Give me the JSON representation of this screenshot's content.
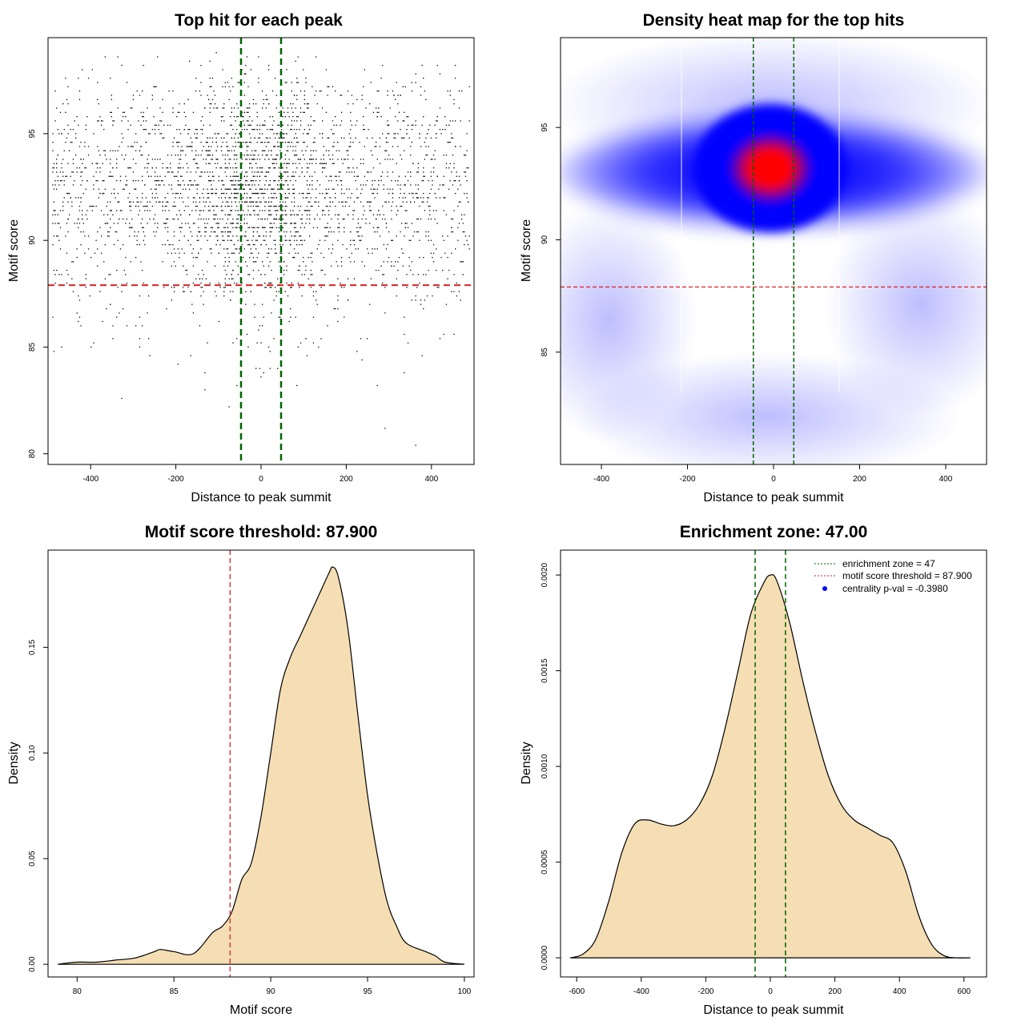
{
  "colors": {
    "threshold": "#dd2222",
    "zone": "#006400",
    "fill": "#f5deb3",
    "points": "#000000",
    "heat_low": "#ffffff",
    "heat_mid": "#0000ff",
    "heat_high": "#ff0000",
    "legend_dot": "#0000ff"
  },
  "chart_data": [
    {
      "type": "scatter",
      "title": "Top hit for each peak",
      "xlabel": "Distance to peak summit",
      "ylabel": "Motif score",
      "xlim": [
        -500,
        500
      ],
      "ylim": [
        79.5,
        99.5
      ],
      "xticks": [
        -400,
        -200,
        0,
        200,
        400
      ],
      "yticks": [
        80,
        85,
        90,
        95
      ],
      "threshold": 87.9,
      "zone": [
        -47,
        47
      ],
      "point_cloud": {
        "count": 3200,
        "x_range": [
          -490,
          490
        ],
        "x_peak": 0,
        "y_center": 92.8,
        "y_sd": 2.4,
        "y_max": 98.8
      }
    },
    {
      "type": "heatmap",
      "title": "Density heat map for the top hits",
      "xlabel": "Distance to peak summit",
      "ylabel": "Motif score",
      "xlim": [
        -495,
        495
      ],
      "ylim": [
        80,
        99
      ],
      "xticks": [
        -400,
        -200,
        0,
        200,
        400
      ],
      "yticks": [
        85,
        90,
        95
      ],
      "threshold": 87.9,
      "zone": [
        -47,
        47
      ],
      "hotspot": {
        "x": 0,
        "y": 93.5
      }
    },
    {
      "type": "area",
      "title": "Motif score threshold: 87.900",
      "xlabel": "Motif score",
      "ylabel": "Density",
      "xlim": [
        78.5,
        100.5
      ],
      "ylim": [
        -0.006,
        0.196
      ],
      "xticks": [
        80,
        85,
        90,
        95,
        100
      ],
      "yticks": [
        0.0,
        0.05,
        0.1,
        0.15
      ],
      "ytick_labels": [
        "0.00",
        "0.05",
        "0.10",
        "0.15"
      ],
      "threshold": 87.9,
      "x": [
        79,
        80,
        81,
        82,
        83,
        84,
        84.3,
        85,
        86,
        87,
        87.5,
        88,
        88.5,
        89,
        89.5,
        90,
        90.5,
        91,
        91.5,
        92,
        92.5,
        93,
        93.2,
        93.5,
        94,
        94.5,
        95,
        95.5,
        96,
        96.5,
        97,
        98,
        98.5,
        99,
        100
      ],
      "y": [
        0,
        0.001,
        0.001,
        0.002,
        0.003,
        0.006,
        0.007,
        0.006,
        0.005,
        0.015,
        0.018,
        0.025,
        0.04,
        0.048,
        0.07,
        0.1,
        0.13,
        0.145,
        0.155,
        0.165,
        0.175,
        0.185,
        0.188,
        0.183,
        0.158,
        0.118,
        0.08,
        0.052,
        0.03,
        0.018,
        0.01,
        0.006,
        0.004,
        0.001,
        0
      ]
    },
    {
      "type": "area",
      "title": "Enrichment zone: 47.00",
      "xlabel": "Distance to peak summit",
      "ylabel": "Density",
      "xlim": [
        -650,
        670
      ],
      "ylim": [
        -0.0001,
        0.00213
      ],
      "xticks": [
        -600,
        -400,
        -200,
        0,
        200,
        400,
        600
      ],
      "yticks": [
        0,
        0.0005,
        0.001,
        0.0015,
        0.002
      ],
      "ytick_labels": [
        "0.0000",
        "0.0005",
        "0.0010",
        "0.0015",
        "0.0020"
      ],
      "zone": [
        -47,
        47
      ],
      "x": [
        -620,
        -580,
        -540,
        -500,
        -460,
        -420,
        -380,
        -340,
        -300,
        -260,
        -220,
        -180,
        -140,
        -100,
        -60,
        -20,
        0,
        20,
        60,
        100,
        140,
        180,
        220,
        260,
        300,
        340,
        380,
        420,
        460,
        500,
        540,
        580,
        620
      ],
      "y": [
        0,
        2e-05,
        0.0001,
        0.0003,
        0.00055,
        0.0007,
        0.00072,
        0.0007,
        0.00069,
        0.00072,
        0.0008,
        0.00095,
        0.0012,
        0.0015,
        0.0018,
        0.00196,
        0.002,
        0.00197,
        0.00175,
        0.00145,
        0.00118,
        0.00095,
        0.0008,
        0.00072,
        0.00068,
        0.00064,
        0.0006,
        0.00045,
        0.00022,
        7e-05,
        1e-05,
        0,
        0
      ],
      "legend": {
        "position": "top-right",
        "entries": [
          "enrichment zone = 47",
          "motif score threshold = 87.900",
          "centrality p-val = -0.3980"
        ]
      }
    }
  ]
}
